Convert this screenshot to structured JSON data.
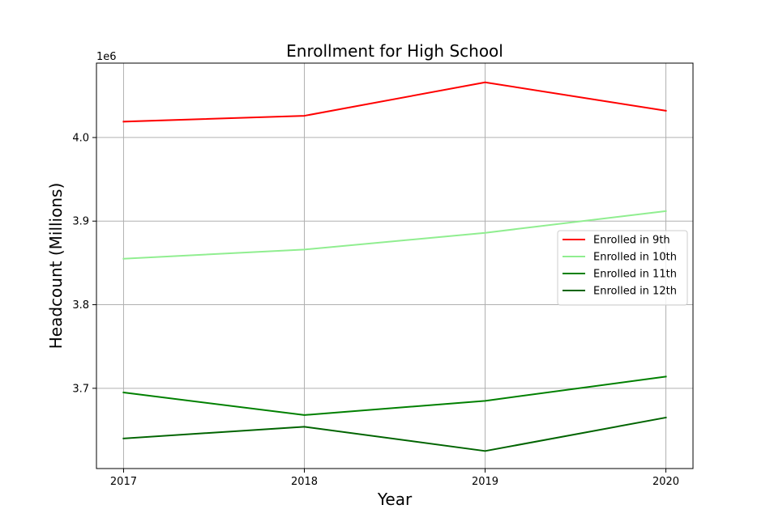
{
  "chart_data": {
    "type": "line",
    "title": "Enrollment for High School",
    "xlabel": "Year",
    "ylabel": "Headcount (Millions)",
    "y_offset_label": "1e6",
    "x": [
      2017,
      2018,
      2019,
      2020
    ],
    "x_tick_labels": [
      "2017",
      "2018",
      "2019",
      "2020"
    ],
    "y_ticks": [
      3700000,
      3800000,
      3900000,
      4000000
    ],
    "y_tick_labels": [
      "3.7",
      "3.8",
      "3.9",
      "4.0"
    ],
    "xlim": [
      2016.85,
      2020.15
    ],
    "ylim": [
      3604000,
      4089000
    ],
    "grid": true,
    "legend_position": "center-right",
    "series": [
      {
        "name": "Enrolled in 9th",
        "color": "#ff0000",
        "values": [
          4019000,
          4026000,
          4066000,
          4032000
        ]
      },
      {
        "name": "Enrolled in 10th",
        "color": "#90ee90",
        "values": [
          3855000,
          3866000,
          3886000,
          3912000
        ]
      },
      {
        "name": "Enrolled in 11th",
        "color": "#008000",
        "values": [
          3695000,
          3668000,
          3685000,
          3714000
        ]
      },
      {
        "name": "Enrolled in 12th",
        "color": "#006400",
        "values": [
          3640000,
          3654000,
          3625000,
          3665000
        ]
      }
    ]
  }
}
